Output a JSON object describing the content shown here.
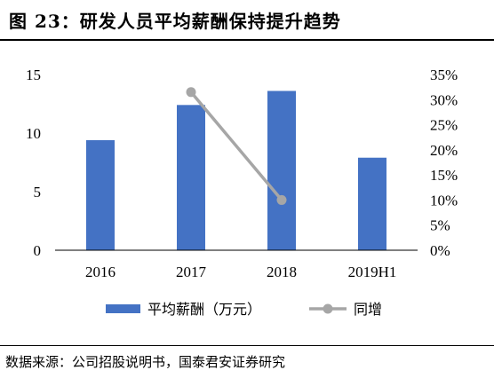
{
  "figure": {
    "title": "图  23：研发人员平均薪酬保持提升趋势",
    "source": "数据来源：公司招股说明书，国泰君安证券研究"
  },
  "chart_data": {
    "type": "bar",
    "categories": [
      "2016",
      "2017",
      "2018",
      "2019H1"
    ],
    "series": [
      {
        "name": "平均薪酬（万元）",
        "type": "bar",
        "axis": "left",
        "color": "#4472C4",
        "values": [
          9.4,
          12.4,
          13.6,
          7.9
        ]
      },
      {
        "name": "同增",
        "type": "line",
        "axis": "right",
        "color": "#A6A6A6",
        "values": [
          null,
          31.5,
          10.0,
          null
        ]
      }
    ],
    "y_left": {
      "min": 0,
      "max": 15,
      "ticks": [
        "0",
        "5",
        "10",
        "15"
      ]
    },
    "y_right": {
      "min": 0,
      "max": 35,
      "ticks": [
        "0%",
        "5%",
        "10%",
        "15%",
        "20%",
        "25%",
        "30%",
        "35%"
      ]
    },
    "grid": false,
    "legend_position": "bottom"
  }
}
